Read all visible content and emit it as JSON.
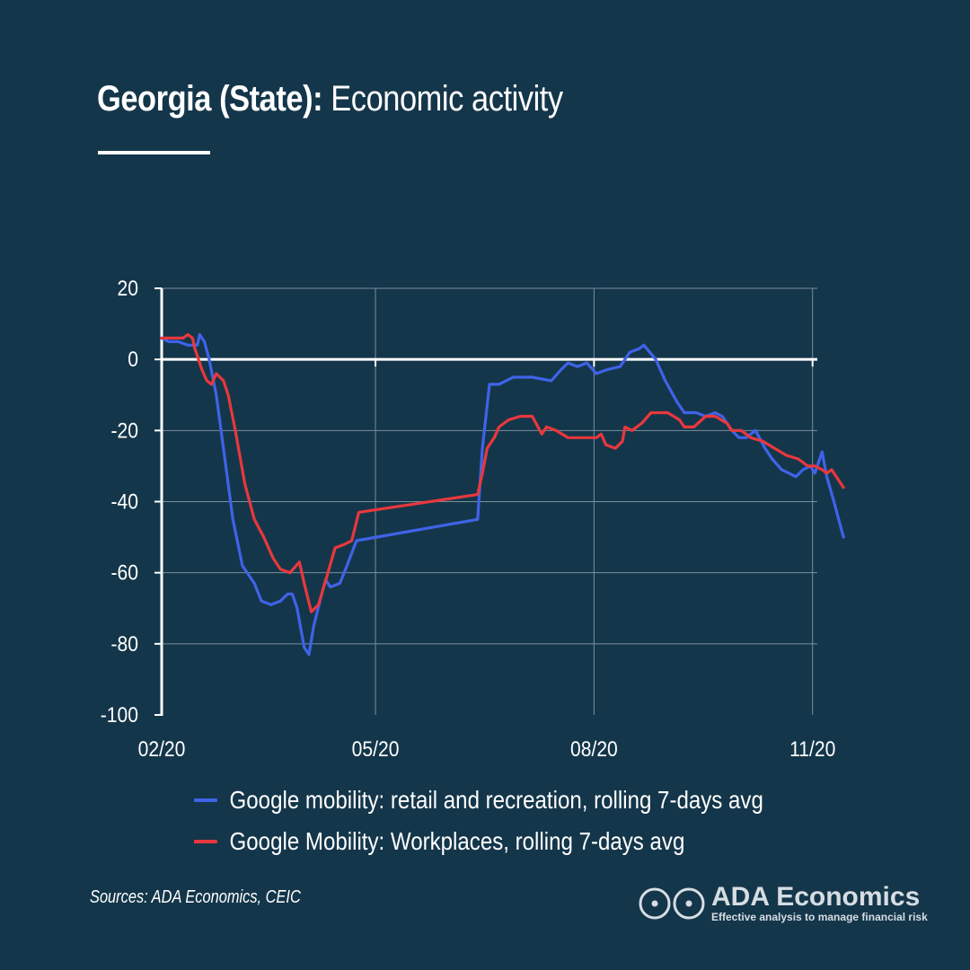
{
  "header": {
    "title_bold": "Georgia (State):",
    "title_rest": " Economic activity"
  },
  "footer": {
    "sources": "Sources: ADA Economics, CEIC",
    "brand_name": "ADA Economics",
    "brand_tagline": "Effective analysis to manage financial risk"
  },
  "colors": {
    "background": "#14364a",
    "series_retail": "#3f63e8",
    "series_workplaces": "#e8383d",
    "axis": "#ffffff",
    "grid": "#7a8f9c"
  },
  "chart_data": {
    "type": "line",
    "title": "",
    "xlabel": "",
    "ylabel": "",
    "ylim": [
      -100,
      20
    ],
    "yticks": [
      20,
      0,
      -20,
      -40,
      -60,
      -80,
      -100
    ],
    "xlim": [
      "2020-02-15",
      "2020-11-17"
    ],
    "xtick_dates": [
      "2020-02-15",
      "2020-05-15",
      "2020-08-15",
      "2020-11-15"
    ],
    "xtick_labels": [
      "02/20",
      "05/20",
      "08/20",
      "11/20"
    ],
    "grid": true,
    "legend_position": "bottom",
    "series": [
      {
        "name": "Google mobility: retail and recreation, rolling 7-days avg",
        "color": "#3f63e8",
        "points": [
          [
            "2020-02-15",
            6
          ],
          [
            "2020-02-18",
            5
          ],
          [
            "2020-02-22",
            5
          ],
          [
            "2020-02-26",
            4
          ],
          [
            "2020-03-01",
            4
          ],
          [
            "2020-03-02",
            7
          ],
          [
            "2020-03-04",
            5
          ],
          [
            "2020-03-06",
            0
          ],
          [
            "2020-03-09",
            -10
          ],
          [
            "2020-03-12",
            -25
          ],
          [
            "2020-03-16",
            -45
          ],
          [
            "2020-03-20",
            -58
          ],
          [
            "2020-03-25",
            -63
          ],
          [
            "2020-03-28",
            -68
          ],
          [
            "2020-04-01",
            -69
          ],
          [
            "2020-04-05",
            -68
          ],
          [
            "2020-04-08",
            -66
          ],
          [
            "2020-04-10",
            -66
          ],
          [
            "2020-04-12",
            -70
          ],
          [
            "2020-04-15",
            -81
          ],
          [
            "2020-04-17",
            -83
          ],
          [
            "2020-04-19",
            -75
          ],
          [
            "2020-04-22",
            -67
          ],
          [
            "2020-04-24",
            -62
          ],
          [
            "2020-04-26",
            -64
          ],
          [
            "2020-04-30",
            -63
          ],
          [
            "2020-05-03",
            -58
          ],
          [
            "2020-05-07",
            -51
          ],
          [
            "2020-06-27",
            -45
          ],
          [
            "2020-06-29",
            -25
          ],
          [
            "2020-07-02",
            -7
          ],
          [
            "2020-07-06",
            -7
          ],
          [
            "2020-07-12",
            -5
          ],
          [
            "2020-07-20",
            -5
          ],
          [
            "2020-07-28",
            -6
          ],
          [
            "2020-08-01",
            -3
          ],
          [
            "2020-08-04",
            -1
          ],
          [
            "2020-08-08",
            -2
          ],
          [
            "2020-08-12",
            -1
          ],
          [
            "2020-08-16",
            -4
          ],
          [
            "2020-08-20",
            -3
          ],
          [
            "2020-08-26",
            -2
          ],
          [
            "2020-08-30",
            2
          ],
          [
            "2020-09-03",
            3
          ],
          [
            "2020-09-05",
            4
          ],
          [
            "2020-09-10",
            0
          ],
          [
            "2020-09-14",
            -6
          ],
          [
            "2020-09-19",
            -12
          ],
          [
            "2020-09-22",
            -15
          ],
          [
            "2020-09-27",
            -15
          ],
          [
            "2020-10-01",
            -16
          ],
          [
            "2020-10-05",
            -15
          ],
          [
            "2020-10-08",
            -16
          ],
          [
            "2020-10-12",
            -20
          ],
          [
            "2020-10-15",
            -22
          ],
          [
            "2020-10-18",
            -22
          ],
          [
            "2020-10-22",
            -20
          ],
          [
            "2020-10-26",
            -25
          ],
          [
            "2020-10-29",
            -28
          ],
          [
            "2020-11-02",
            -31
          ],
          [
            "2020-11-05",
            -32
          ],
          [
            "2020-11-08",
            -33
          ],
          [
            "2020-11-11",
            -31
          ],
          [
            "2020-11-14",
            -30
          ],
          [
            "2020-11-16",
            -32
          ],
          [
            "2020-11-19",
            -26
          ],
          [
            "2020-11-21",
            -33
          ],
          [
            "2020-11-24",
            -40
          ],
          [
            "2020-11-26",
            -45
          ],
          [
            "2020-11-28",
            -50
          ]
        ]
      },
      {
        "name": "Google Mobility: Workplaces, rolling 7-days avg",
        "color": "#e8383d",
        "points": [
          [
            "2020-02-15",
            6
          ],
          [
            "2020-02-20",
            6
          ],
          [
            "2020-02-24",
            6
          ],
          [
            "2020-02-26",
            7
          ],
          [
            "2020-02-28",
            6
          ],
          [
            "2020-02-29",
            3
          ],
          [
            "2020-03-03",
            -3
          ],
          [
            "2020-03-05",
            -6
          ],
          [
            "2020-03-07",
            -7
          ],
          [
            "2020-03-09",
            -4
          ],
          [
            "2020-03-12",
            -6
          ],
          [
            "2020-03-14",
            -10
          ],
          [
            "2020-03-17",
            -20
          ],
          [
            "2020-03-21",
            -35
          ],
          [
            "2020-03-25",
            -45
          ],
          [
            "2020-03-29",
            -50
          ],
          [
            "2020-04-02",
            -56
          ],
          [
            "2020-04-05",
            -59
          ],
          [
            "2020-04-09",
            -60
          ],
          [
            "2020-04-13",
            -57
          ],
          [
            "2020-04-15",
            -63
          ],
          [
            "2020-04-18",
            -71
          ],
          [
            "2020-04-21",
            -69
          ],
          [
            "2020-04-25",
            -60
          ],
          [
            "2020-04-28",
            -53
          ],
          [
            "2020-05-02",
            -52
          ],
          [
            "2020-05-05",
            -51
          ],
          [
            "2020-05-08",
            -43
          ],
          [
            "2020-06-27",
            -38
          ],
          [
            "2020-06-29",
            -32
          ],
          [
            "2020-07-01",
            -25
          ],
          [
            "2020-07-04",
            -22
          ],
          [
            "2020-07-06",
            -19
          ],
          [
            "2020-07-10",
            -17
          ],
          [
            "2020-07-15",
            -16
          ],
          [
            "2020-07-20",
            -16
          ],
          [
            "2020-07-24",
            -21
          ],
          [
            "2020-07-26",
            -19
          ],
          [
            "2020-07-30",
            -20
          ],
          [
            "2020-08-04",
            -22
          ],
          [
            "2020-08-10",
            -22
          ],
          [
            "2020-08-16",
            -22
          ],
          [
            "2020-08-18",
            -21
          ],
          [
            "2020-08-20",
            -24
          ],
          [
            "2020-08-24",
            -25
          ],
          [
            "2020-08-27",
            -23
          ],
          [
            "2020-08-28",
            -19
          ],
          [
            "2020-08-31",
            -20
          ],
          [
            "2020-09-04",
            -18
          ],
          [
            "2020-09-08",
            -15
          ],
          [
            "2020-09-15",
            -15
          ],
          [
            "2020-09-20",
            -17
          ],
          [
            "2020-09-22",
            -19
          ],
          [
            "2020-09-26",
            -19
          ],
          [
            "2020-10-01",
            -16
          ],
          [
            "2020-10-05",
            -16
          ],
          [
            "2020-10-10",
            -18
          ],
          [
            "2020-10-12",
            -20
          ],
          [
            "2020-10-16",
            -20
          ],
          [
            "2020-10-20",
            -22
          ],
          [
            "2020-10-25",
            -23
          ],
          [
            "2020-10-30",
            -25
          ],
          [
            "2020-11-04",
            -27
          ],
          [
            "2020-11-09",
            -28
          ],
          [
            "2020-11-13",
            -30
          ],
          [
            "2020-11-16",
            -30
          ],
          [
            "2020-11-19",
            -31
          ],
          [
            "2020-11-21",
            -32
          ],
          [
            "2020-11-23",
            -31
          ],
          [
            "2020-11-25",
            -33
          ],
          [
            "2020-11-28",
            -36
          ]
        ]
      }
    ]
  }
}
